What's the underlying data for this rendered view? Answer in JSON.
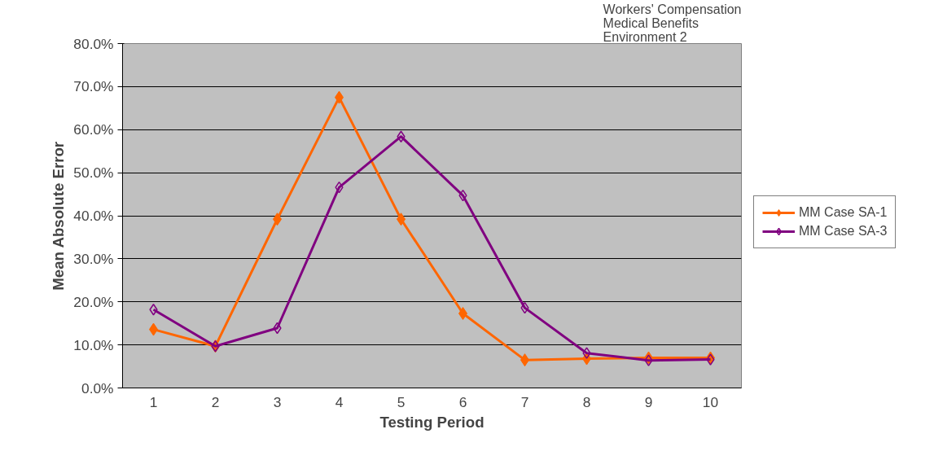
{
  "chart_data": {
    "type": "line",
    "title": "Workers' Compensation\nMedical Benefits\nEnvironment 2",
    "xlabel": "Testing Period",
    "ylabel": "Mean Absolute Error",
    "categories": [
      "1",
      "2",
      "3",
      "4",
      "5",
      "6",
      "7",
      "8",
      "9",
      "10"
    ],
    "series": [
      {
        "name": "MM Case SA-1",
        "color": "#ff6600",
        "values": [
          13.6,
          9.7,
          39.2,
          67.5,
          39.2,
          17.3,
          6.5,
          6.8,
          7.0,
          7.0
        ]
      },
      {
        "name": "MM Case SA-3",
        "color": "#800080",
        "values": [
          18.2,
          9.7,
          13.9,
          46.6,
          58.4,
          44.7,
          18.6,
          8.1,
          6.4,
          6.6
        ]
      }
    ],
    "ylim": [
      0,
      80
    ],
    "yticks": [
      {
        "value": 0,
        "label": "0.0%"
      },
      {
        "value": 10,
        "label": "10.0%"
      },
      {
        "value": 20,
        "label": "20.0%"
      },
      {
        "value": 30,
        "label": "30.0%"
      },
      {
        "value": 40,
        "label": "40.0%"
      },
      {
        "value": 50,
        "label": "50.0%"
      },
      {
        "value": 60,
        "label": "60.0%"
      },
      {
        "value": 70,
        "label": "70.0%"
      },
      {
        "value": 80,
        "label": "80.0%"
      }
    ],
    "grid": "y",
    "legend": "right",
    "marker": "diamond",
    "line_style": "solid"
  }
}
